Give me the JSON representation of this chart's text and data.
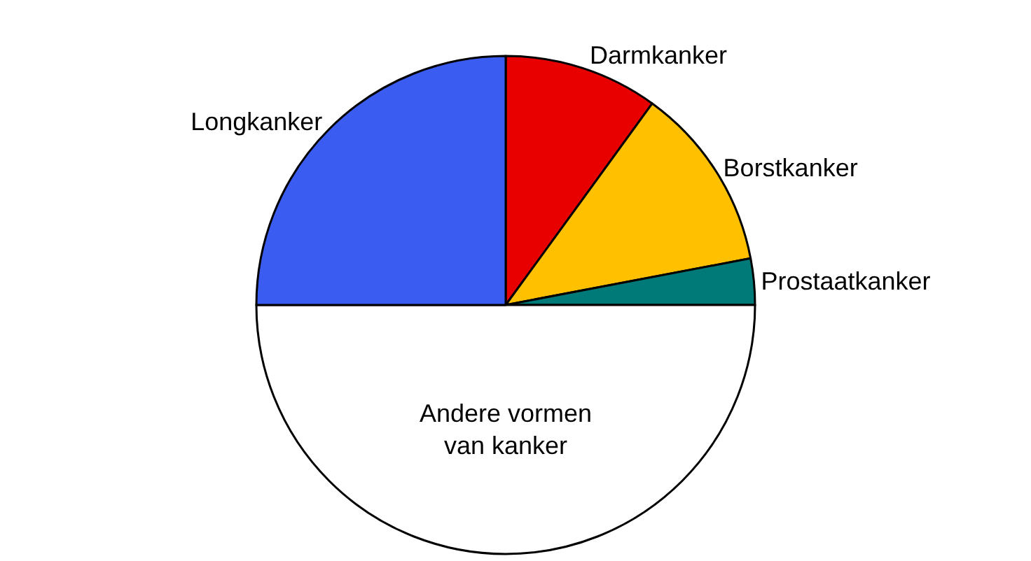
{
  "chart_data": {
    "type": "pie",
    "categories": [
      "Darmkanker",
      "Borstkanker",
      "Prostaatkanker",
      "Andere vormen van kanker",
      "Longkanker"
    ],
    "values": [
      10,
      12,
      3,
      50,
      25
    ],
    "colors": [
      "#e80000",
      "#ffc000",
      "#007a78",
      "#ffffff",
      "#3a5cf0"
    ]
  }
}
